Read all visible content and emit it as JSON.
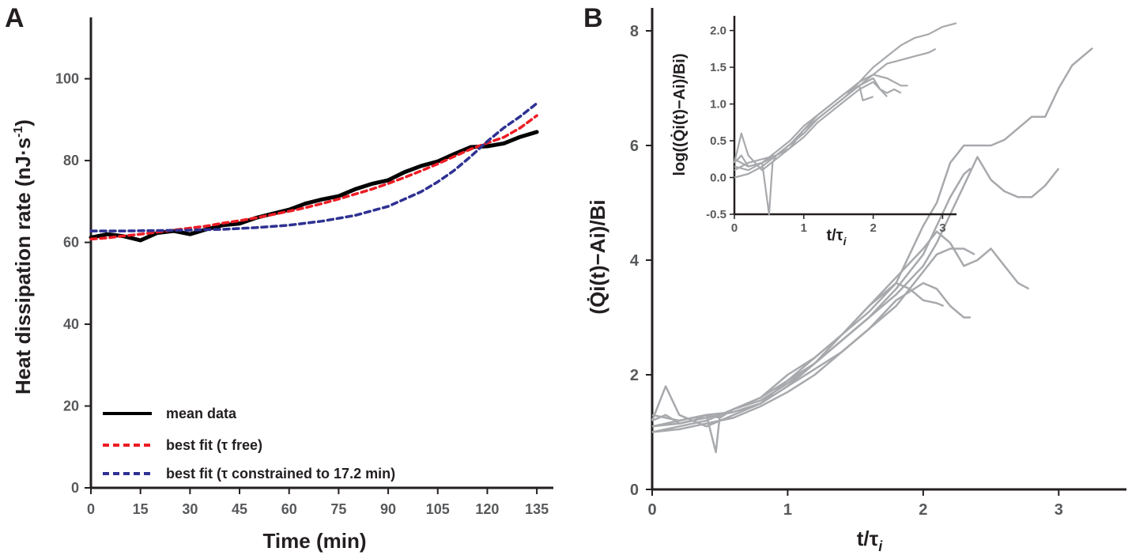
{
  "chart_data": [
    {
      "panel": "A",
      "type": "line",
      "xlabel": "Time (min)",
      "ylabel_main": "Heat dissipation rate (nJ·s",
      "ylabel_sup": "-1",
      "ylabel_close": ")",
      "xlim": [
        0,
        140
      ],
      "ylim": [
        0,
        115
      ],
      "xticks": [
        0,
        15,
        30,
        45,
        60,
        75,
        90,
        105,
        120,
        135
      ],
      "yticks": [
        0,
        20,
        40,
        60,
        80,
        100
      ],
      "grid": false,
      "legend_position": "bottom-left",
      "series": [
        {
          "name": "mean data",
          "color": "#000000",
          "style": "solid",
          "x": [
            0,
            5,
            10,
            15,
            20,
            25,
            30,
            35,
            40,
            45,
            50,
            55,
            60,
            65,
            70,
            75,
            80,
            85,
            90,
            95,
            100,
            105,
            110,
            115,
            120,
            125,
            130,
            135
          ],
          "y": [
            61.2,
            62.0,
            61.5,
            60.5,
            62.3,
            62.8,
            62.0,
            63.2,
            64.2,
            64.6,
            66.0,
            67.0,
            68.0,
            69.5,
            70.5,
            71.3,
            73.0,
            74.3,
            75.2,
            77.2,
            78.7,
            79.8,
            81.6,
            83.3,
            83.5,
            84.2,
            85.8,
            87.0
          ]
        },
        {
          "name": "best fit (τ free)",
          "color": "#ed1c24",
          "style": "dashed",
          "x": [
            0,
            5,
            10,
            15,
            20,
            25,
            30,
            35,
            40,
            45,
            50,
            55,
            60,
            65,
            70,
            75,
            80,
            85,
            90,
            95,
            100,
            105,
            110,
            115,
            120,
            125,
            130,
            135
          ],
          "y": [
            60.8,
            61.1,
            61.6,
            62.0,
            62.5,
            63.0,
            63.5,
            64.0,
            64.7,
            65.3,
            66.0,
            66.8,
            67.6,
            68.5,
            69.5,
            70.6,
            71.8,
            73.0,
            74.4,
            75.9,
            77.5,
            79.2,
            81.0,
            82.8,
            84.3,
            85.7,
            88.0,
            91.0
          ]
        },
        {
          "name": "best fit (τ constrained to 17.2 min)",
          "color": "#2e3192",
          "style": "dashed",
          "x": [
            0,
            10,
            20,
            30,
            40,
            50,
            60,
            70,
            80,
            90,
            100,
            105,
            110,
            115,
            120,
            125,
            130,
            135
          ],
          "y": [
            62.8,
            62.8,
            62.9,
            63.0,
            63.2,
            63.6,
            64.2,
            65.2,
            66.6,
            68.8,
            72.4,
            74.8,
            77.6,
            81.0,
            84.7,
            88.0,
            90.8,
            94.0
          ]
        }
      ]
    },
    {
      "panel": "B",
      "type": "line",
      "xlabel_main": "t/τ",
      "xlabel_sub": "i",
      "ylabel": "(Q̇i(t)−Ai)/Bi",
      "xlim": [
        0,
        3.5
      ],
      "ylim": [
        0,
        8.4
      ],
      "xticks": [
        0,
        1,
        2,
        3
      ],
      "yticks": [
        0,
        2,
        4,
        6,
        8
      ],
      "color": "#a7a9ac",
      "grid": false,
      "series": [
        {
          "x": [
            0,
            0.1,
            0.2,
            0.3,
            0.4,
            0.5,
            0.6,
            0.8,
            1.0,
            1.2,
            1.4,
            1.6,
            1.8,
            1.9,
            2.0,
            2.1,
            2.2,
            2.3,
            2.4,
            2.5,
            2.6,
            2.7,
            2.8,
            2.9,
            3.0,
            3.1,
            3.2,
            3.25
          ],
          "y": [
            1.2,
            1.3,
            1.15,
            1.2,
            1.3,
            1.25,
            1.4,
            1.6,
            1.9,
            2.2,
            2.7,
            3.1,
            3.6,
            4.1,
            4.6,
            5.0,
            5.7,
            6.0,
            6.0,
            6.0,
            6.1,
            6.3,
            6.5,
            6.5,
            7.0,
            7.4,
            7.6,
            7.7
          ]
        },
        {
          "x": [
            0,
            0.2,
            0.4,
            0.6,
            0.8,
            1.0,
            1.2,
            1.4,
            1.6,
            1.8,
            2.0,
            2.1,
            2.2,
            2.3,
            2.4,
            2.5,
            2.6,
            2.7,
            2.8,
            2.9,
            3.0
          ],
          "y": [
            1.1,
            1.2,
            1.3,
            1.35,
            1.5,
            1.8,
            2.2,
            2.6,
            3.0,
            3.4,
            3.9,
            4.3,
            4.8,
            5.3,
            5.8,
            5.4,
            5.2,
            5.1,
            5.1,
            5.3,
            5.6
          ]
        },
        {
          "x": [
            0,
            0.2,
            0.4,
            0.5,
            0.6,
            0.8,
            1.0,
            1.2,
            1.4,
            1.6,
            1.8,
            2.0,
            2.1,
            2.2,
            2.3,
            2.35
          ],
          "y": [
            1.0,
            1.1,
            1.2,
            1.3,
            1.4,
            1.55,
            1.85,
            2.2,
            2.6,
            3.0,
            3.5,
            4.1,
            4.6,
            5.1,
            5.5,
            5.6
          ]
        },
        {
          "x": [
            0,
            0.1,
            0.2,
            0.4,
            0.6,
            0.8,
            1.0,
            1.2,
            1.4,
            1.6,
            1.8,
            2.0,
            2.1,
            2.2,
            2.3,
            2.4,
            2.5,
            2.6,
            2.7,
            2.78
          ],
          "y": [
            1.2,
            1.8,
            1.3,
            1.1,
            1.3,
            1.5,
            1.9,
            2.3,
            2.7,
            3.2,
            3.7,
            4.2,
            4.5,
            4.3,
            3.9,
            4.0,
            4.2,
            3.9,
            3.6,
            3.5
          ]
        },
        {
          "x": [
            0,
            0.2,
            0.4,
            0.6,
            0.8,
            1.0,
            1.2,
            1.4,
            1.6,
            1.8,
            2.0,
            2.1,
            2.2,
            2.3,
            2.38
          ],
          "y": [
            1.1,
            1.15,
            1.25,
            1.35,
            1.5,
            1.8,
            2.1,
            2.4,
            2.8,
            3.2,
            3.8,
            4.1,
            4.2,
            4.2,
            4.1
          ]
        },
        {
          "x": [
            0,
            0.2,
            0.4,
            0.47,
            0.5,
            0.6,
            0.8,
            1.0,
            1.2,
            1.4,
            1.6,
            1.8,
            1.9,
            2.0,
            2.1,
            2.15
          ],
          "y": [
            1.3,
            1.2,
            1.3,
            0.65,
            1.3,
            1.4,
            1.6,
            2.0,
            2.3,
            2.7,
            3.2,
            3.6,
            3.5,
            3.3,
            3.25,
            3.2
          ]
        },
        {
          "x": [
            0,
            0.2,
            0.4,
            0.6,
            0.8,
            1.0,
            1.2,
            1.4,
            1.6,
            1.8,
            2.0,
            2.1,
            2.2,
            2.3,
            2.35
          ],
          "y": [
            1.0,
            1.05,
            1.15,
            1.25,
            1.45,
            1.7,
            2.0,
            2.4,
            2.8,
            3.3,
            3.6,
            3.5,
            3.2,
            3.0,
            3.0
          ]
        }
      ],
      "inset": {
        "type": "line",
        "xlabel_main": "t/τ",
        "xlabel_sub": "i",
        "ylabel": "log((Q̇i(t)−Ai)/Bi)",
        "xlim": [
          0,
          3.2
        ],
        "ylim": [
          -0.5,
          2.2
        ],
        "xticks": [
          0,
          1,
          2,
          3
        ],
        "yticks": [
          -0.5,
          0.0,
          0.5,
          1.0,
          1.5,
          2.0
        ],
        "ytick_labels": [
          "-0.5",
          "0.0",
          "0.5",
          "1.0",
          "1.5",
          "2.0"
        ],
        "series": [
          {
            "x": [
              0,
              0.1,
              0.2,
              0.4,
              0.6,
              0.8,
              1.0,
              1.2,
              1.4,
              1.6,
              1.8,
              2.0,
              2.2,
              2.4,
              2.6,
              2.8,
              3.0,
              3.2
            ],
            "y": [
              0.2,
              0.3,
              0.15,
              0.2,
              0.3,
              0.45,
              0.65,
              0.85,
              1.0,
              1.15,
              1.3,
              1.5,
              1.65,
              1.8,
              1.9,
              1.95,
              2.05,
              2.1
            ]
          },
          {
            "x": [
              0,
              0.2,
              0.4,
              0.6,
              0.8,
              1.0,
              1.2,
              1.4,
              1.6,
              1.8,
              2.0,
              2.2,
              2.4,
              2.6,
              2.8,
              2.9
            ],
            "y": [
              0.1,
              0.2,
              0.25,
              0.3,
              0.45,
              0.6,
              0.8,
              0.95,
              1.1,
              1.25,
              1.4,
              1.55,
              1.6,
              1.65,
              1.7,
              1.75
            ]
          },
          {
            "x": [
              0,
              0.1,
              0.2,
              0.4,
              0.6,
              0.8,
              1.0,
              1.2,
              1.4,
              1.6,
              1.8,
              2.0,
              2.2,
              2.4,
              2.5
            ],
            "y": [
              0.2,
              0.6,
              0.3,
              0.1,
              0.25,
              0.4,
              0.65,
              0.8,
              0.95,
              1.1,
              1.3,
              1.4,
              1.35,
              1.25,
              1.25
            ]
          },
          {
            "x": [
              0,
              0.2,
              0.4,
              0.5,
              0.55,
              0.6,
              0.8,
              1.0,
              1.2,
              1.4,
              1.6,
              1.8,
              2.0,
              2.1,
              2.2,
              2.3,
              2.4
            ],
            "y": [
              0.15,
              0.1,
              0.2,
              -0.5,
              0.2,
              0.3,
              0.45,
              0.6,
              0.8,
              0.95,
              1.1,
              1.25,
              1.35,
              1.2,
              1.15,
              1.2,
              1.15
            ]
          },
          {
            "x": [
              0,
              0.2,
              0.4,
              0.6,
              0.8,
              1.0,
              1.2,
              1.4,
              1.6,
              1.8,
              2.0,
              2.1,
              2.2
            ],
            "y": [
              0.0,
              0.05,
              0.15,
              0.3,
              0.4,
              0.55,
              0.75,
              0.9,
              1.05,
              1.2,
              1.3,
              1.2,
              1.1
            ]
          },
          {
            "x": [
              0,
              0.2,
              0.4,
              0.6,
              0.8,
              1.0,
              1.2,
              1.4,
              1.6,
              1.8,
              1.85,
              2.0
            ],
            "y": [
              0.25,
              0.15,
              0.2,
              0.35,
              0.5,
              0.7,
              0.85,
              1.0,
              1.15,
              1.25,
              1.05,
              1.1
            ]
          }
        ]
      }
    }
  ]
}
